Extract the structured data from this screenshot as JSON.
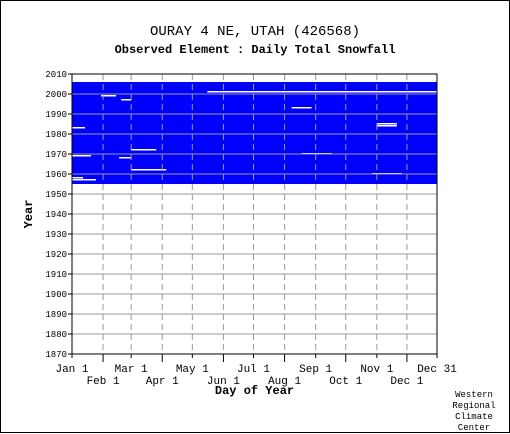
{
  "title": "OURAY 4 NE, UTAH   (426568)",
  "subtitle": "Observed Element : Daily Total Snowfall",
  "credit": [
    "Western",
    "Regional",
    "Climate",
    "Center"
  ],
  "chart_data": {
    "type": "heatmap",
    "title": "OURAY 4 NE, UTAH   (426568)",
    "subtitle": "Observed Element : Daily Total Snowfall",
    "xlabel": "Day of Year",
    "ylabel": "Year",
    "x_range_days": [
      1,
      365
    ],
    "ylim": [
      1870,
      2010
    ],
    "y_ticks": [
      1870,
      1880,
      1890,
      1900,
      1910,
      1920,
      1930,
      1940,
      1950,
      1960,
      1970,
      1980,
      1990,
      2000,
      2010
    ],
    "x_ticks_top_row": [
      {
        "label": "Jan 1",
        "day": 1
      },
      {
        "label": "Mar 1",
        "day": 60
      },
      {
        "label": "May 1",
        "day": 121
      },
      {
        "label": "Jul 1",
        "day": 182
      },
      {
        "label": "Sep 1",
        "day": 244
      },
      {
        "label": "Nov 1",
        "day": 305
      },
      {
        "label": "Dec 31",
        "day": 365
      }
    ],
    "x_ticks_bottom_row": [
      {
        "label": "Feb 1",
        "day": 32
      },
      {
        "label": "Apr 1",
        "day": 91
      },
      {
        "label": "Jun 1",
        "day": 152
      },
      {
        "label": "Aug 1",
        "day": 213
      },
      {
        "label": "Oct 1",
        "day": 274
      },
      {
        "label": "Dec 1",
        "day": 335
      }
    ],
    "data_color": "#0000ff",
    "grid": true,
    "record_start_year": 1955,
    "record_end_year": 2005,
    "gap_rows": [
      {
        "year": 2001,
        "start": 136,
        "end": 365
      },
      {
        "year": 1999,
        "start": 30,
        "end": 45
      },
      {
        "year": 1997,
        "start": 50,
        "end": 60
      },
      {
        "year": 1993,
        "start": 220,
        "end": 240
      },
      {
        "year": 1985,
        "start": 305,
        "end": 325
      },
      {
        "year": 1984,
        "start": 305,
        "end": 325
      },
      {
        "year": 1983,
        "start": 1,
        "end": 14
      },
      {
        "year": 1972,
        "start": 60,
        "end": 85
      },
      {
        "year": 1970,
        "start": 230,
        "end": 260
      },
      {
        "year": 1969,
        "start": 1,
        "end": 20
      },
      {
        "year": 1968,
        "start": 48,
        "end": 60
      },
      {
        "year": 1962,
        "start": 60,
        "end": 95
      },
      {
        "year": 1960,
        "start": 300,
        "end": 330
      },
      {
        "year": 1958,
        "start": 1,
        "end": 12
      },
      {
        "year": 1957,
        "start": 1,
        "end": 25
      }
    ]
  }
}
